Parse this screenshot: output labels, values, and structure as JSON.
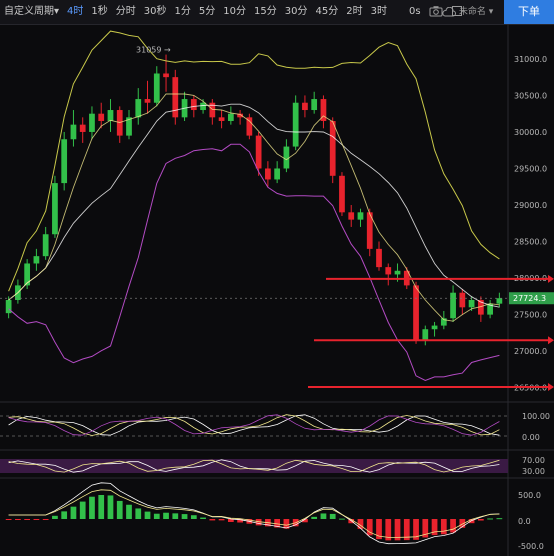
{
  "toolbar": {
    "custom_period": "自定义周期",
    "items": [
      "4时",
      "1秒",
      "分时",
      "30秒",
      "1分",
      "5分",
      "10分",
      "15分",
      "30分",
      "45分",
      "2时",
      "3时"
    ],
    "active_index": 0,
    "chevron": "▾",
    "zero_sec": "0s",
    "unnamed": "未命名",
    "order_button": "下单",
    "icons": [
      "camera-icon",
      "cloud-icon",
      "chevron-down-icon"
    ]
  },
  "colors": {
    "up": "#32c04a",
    "down": "#e8232d",
    "mid_line": "#ffffff",
    "band_outer": "#c8c84a",
    "band_inner": "#b34bc4",
    "signal_line": "#f0e68c",
    "current_price_bg": "#2f9e4a",
    "order_button": "#2f7de1"
  },
  "chart_data": {
    "type": "candlestick",
    "price_axis_ticks": [
      "31000.0",
      "30500.0",
      "30000.0",
      "29500.0",
      "29000.0",
      "28500.0",
      "28000.0",
      "27500.0",
      "27000.0",
      "26500.0"
    ],
    "price_axis_range": [
      26400,
      31450
    ],
    "high_marker": "31059",
    "current_price": "27724.3",
    "horizontal_levels": [
      27990,
      27150,
      26510
    ],
    "candles": [
      [
        27520,
        27700,
        27450,
        27750
      ],
      [
        27700,
        27900,
        27650,
        27980
      ],
      [
        27900,
        28200,
        27850,
        28260
      ],
      [
        28200,
        28300,
        28100,
        28400
      ],
      [
        28300,
        28600,
        28250,
        28700
      ],
      [
        28600,
        29300,
        28550,
        29400
      ],
      [
        29300,
        29900,
        29200,
        30000
      ],
      [
        29900,
        30100,
        29800,
        30300
      ],
      [
        30100,
        30000,
        29850,
        30200
      ],
      [
        30000,
        30250,
        29900,
        30350
      ],
      [
        30250,
        30150,
        30050,
        30400
      ],
      [
        30150,
        30300,
        30000,
        30450
      ],
      [
        30300,
        29950,
        29850,
        30350
      ],
      [
        29950,
        30200,
        29900,
        30300
      ],
      [
        30200,
        30450,
        30100,
        30600
      ],
      [
        30450,
        30400,
        30250,
        30700
      ],
      [
        30400,
        30800,
        30350,
        30900
      ],
      [
        30800,
        30750,
        30550,
        31059
      ],
      [
        30750,
        30200,
        30100,
        30850
      ],
      [
        30200,
        30450,
        30150,
        30550
      ],
      [
        30450,
        30300,
        30200,
        30500
      ],
      [
        30300,
        30400,
        30250,
        30450
      ],
      [
        30400,
        30200,
        30100,
        30450
      ],
      [
        30200,
        30150,
        30050,
        30300
      ],
      [
        30150,
        30250,
        30100,
        30350
      ],
      [
        30250,
        30200,
        30100,
        30300
      ],
      [
        30200,
        29950,
        29900,
        30250
      ],
      [
        29950,
        29500,
        29400,
        30000
      ],
      [
        29500,
        29350,
        29250,
        29600
      ],
      [
        29350,
        29500,
        29300,
        29600
      ],
      [
        29500,
        29800,
        29450,
        29900
      ],
      [
        29800,
        30400,
        29750,
        30500
      ],
      [
        30400,
        30300,
        30200,
        30500
      ],
      [
        30300,
        30450,
        30250,
        30550
      ],
      [
        30450,
        30150,
        30050,
        30500
      ],
      [
        30150,
        29400,
        29300,
        30200
      ],
      [
        29400,
        28900,
        28850,
        29450
      ],
      [
        28900,
        28800,
        28700,
        29000
      ],
      [
        28800,
        28900,
        28700,
        28950
      ],
      [
        28900,
        28400,
        28300,
        28950
      ],
      [
        28400,
        28150,
        28100,
        28500
      ],
      [
        28150,
        28050,
        27900,
        28200
      ],
      [
        28050,
        28100,
        27950,
        28200
      ],
      [
        28100,
        27900,
        27850,
        28150
      ],
      [
        27900,
        27150,
        27100,
        27950
      ],
      [
        27150,
        27300,
        27080,
        27350
      ],
      [
        27300,
        27350,
        27200,
        27400
      ],
      [
        27350,
        27450,
        27300,
        27550
      ],
      [
        27450,
        27800,
        27400,
        27900
      ],
      [
        27800,
        27600,
        27500,
        27850
      ],
      [
        27600,
        27700,
        27550,
        27750
      ],
      [
        27700,
        27500,
        27400,
        27750
      ],
      [
        27500,
        27650,
        27450,
        27700
      ],
      [
        27650,
        27724.3,
        27600,
        27800
      ]
    ],
    "indicator1_ticks": [
      "100.00",
      "0.00"
    ],
    "indicator2_ticks": [
      "70.00",
      "30.00"
    ],
    "macd_ticks": [
      "500.0",
      "0.0",
      "-500.0"
    ]
  }
}
